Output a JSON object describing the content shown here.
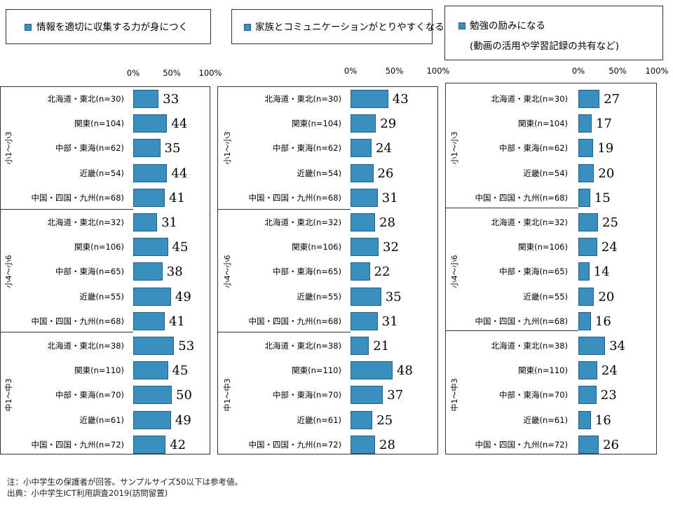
{
  "chart_data": [
    {
      "type": "bar",
      "orientation": "horizontal",
      "title": "",
      "legend": [
        "情報を適切に収集する力が身につく"
      ],
      "xlim": [
        0,
        100
      ],
      "ticks": [
        "0%",
        "50%",
        "100%"
      ],
      "groups": [
        {
          "label": "小1～小3",
          "categories": [
            "北海道・東北(n=30)",
            "関東(n=104)",
            "中部・東海(n=62)",
            "近畿(n=54)",
            "中国・四国・九州(n=68)"
          ],
          "values": [
            33,
            44,
            35,
            44,
            41
          ]
        },
        {
          "label": "小4～小6",
          "categories": [
            "北海道・東北(n=32)",
            "関東(n=106)",
            "中部・東海(n=65)",
            "近畿(n=55)",
            "中国・四国・九州(n=68)"
          ],
          "values": [
            31,
            45,
            38,
            49,
            41
          ]
        },
        {
          "label": "中1～中3",
          "categories": [
            "北海道・東北(n=38)",
            "関東(n=110)",
            "中部・東海(n=70)",
            "近畿(n=61)",
            "中国・四国・九州(n=72)"
          ],
          "values": [
            53,
            45,
            50,
            49,
            42
          ]
        }
      ]
    },
    {
      "type": "bar",
      "orientation": "horizontal",
      "title": "",
      "legend": [
        "家族とコミュニケーションがとりやすくなる"
      ],
      "xlim": [
        0,
        100
      ],
      "ticks": [
        "0%",
        "50%",
        "100%"
      ],
      "groups": [
        {
          "label": "小1～小3",
          "categories": [
            "北海道・東北(n=30)",
            "関東(n=104)",
            "中部・東海(n=62)",
            "近畿(n=54)",
            "中国・四国・九州(n=68)"
          ],
          "values": [
            43,
            29,
            24,
            26,
            31
          ]
        },
        {
          "label": "小4～小6",
          "categories": [
            "北海道・東北(n=32)",
            "関東(n=106)",
            "中部・東海(n=65)",
            "近畿(n=55)",
            "中国・四国・九州(n=68)"
          ],
          "values": [
            28,
            32,
            22,
            35,
            31
          ]
        },
        {
          "label": "中1～中3",
          "categories": [
            "北海道・東北(n=38)",
            "関東(n=110)",
            "中部・東海(n=70)",
            "近畿(n=61)",
            "中国・四国・九州(n=72)"
          ],
          "values": [
            21,
            48,
            37,
            25,
            28
          ]
        }
      ]
    },
    {
      "type": "bar",
      "orientation": "horizontal",
      "title": "",
      "legend": [
        "勉強の励みになる",
        "(動画の活用や学習記録の共有など)"
      ],
      "xlim": [
        0,
        100
      ],
      "ticks": [
        "0%",
        "50%",
        "100%"
      ],
      "groups": [
        {
          "label": "小1～小3",
          "categories": [
            "北海道・東北(n=30)",
            "関東(n=104)",
            "中部・東海(n=62)",
            "近畿(n=54)",
            "中国・四国・九州(n=68)"
          ],
          "values": [
            27,
            17,
            19,
            20,
            15
          ]
        },
        {
          "label": "小4～小6",
          "categories": [
            "北海道・東北(n=32)",
            "関東(n=106)",
            "中部・東海(n=65)",
            "近畿(n=55)",
            "中国・四国・九州(n=68)"
          ],
          "values": [
            25,
            24,
            14,
            20,
            16
          ]
        },
        {
          "label": "中1～中3",
          "categories": [
            "北海道・東北(n=38)",
            "関東(n=110)",
            "中部・東海(n=70)",
            "近畿(n=61)",
            "中国・四国・九州(n=72)"
          ],
          "values": [
            34,
            24,
            23,
            16,
            26
          ]
        }
      ]
    }
  ],
  "colors": {
    "bar_fill": "#3a8fbf",
    "bar_border": "#1f5f86",
    "frame": "#333333"
  },
  "notes": {
    "note": "注：小中学生の保護者が回答。サンプルサイズ50以下は参考値。",
    "source": "出典：小中学生ICT利用調査2019(訪問留置)"
  }
}
